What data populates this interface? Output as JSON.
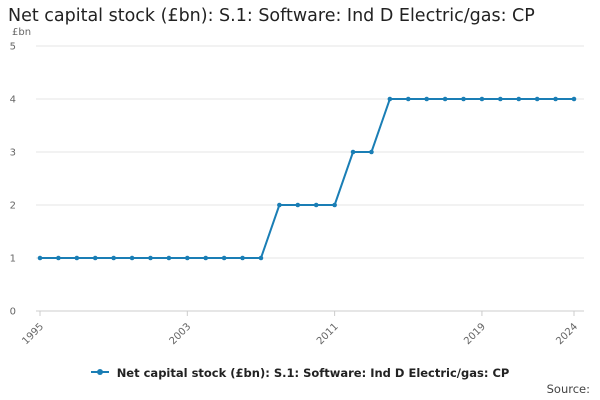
{
  "colors": {
    "series": "#1a7eb5",
    "grid": "#e6e6e6",
    "axis": "#cccccc"
  },
  "chart_data": {
    "type": "line",
    "title": "Net capital stock (£bn): S.1: Software: Ind D Electric/gas: CP",
    "ylabel": "£bn",
    "xlabel": "",
    "x": [
      1995,
      1996,
      1997,
      1998,
      1999,
      2000,
      2001,
      2002,
      2003,
      2004,
      2005,
      2006,
      2007,
      2008,
      2009,
      2010,
      2011,
      2012,
      2013,
      2014,
      2015,
      2016,
      2017,
      2018,
      2019,
      2020,
      2021,
      2022,
      2023,
      2024
    ],
    "series": [
      {
        "name": "Net capital stock (£bn): S.1: Software: Ind D Electric/gas: CP",
        "values": [
          1,
          1,
          1,
          1,
          1,
          1,
          1,
          1,
          1,
          1,
          1,
          1,
          1,
          2,
          2,
          2,
          2,
          3,
          3,
          4,
          4,
          4,
          4,
          4,
          4,
          4,
          4,
          4,
          4,
          4
        ]
      }
    ],
    "xticks": [
      "1995",
      "2003",
      "2011",
      "2019",
      "2024"
    ],
    "yticks": [
      "0",
      "1",
      "2",
      "3",
      "4",
      "5"
    ],
    "xlim": [
      1995,
      2024
    ],
    "ylim": [
      0,
      5
    ],
    "grid": true,
    "legend_position": "bottom"
  },
  "source_label": "Source:"
}
